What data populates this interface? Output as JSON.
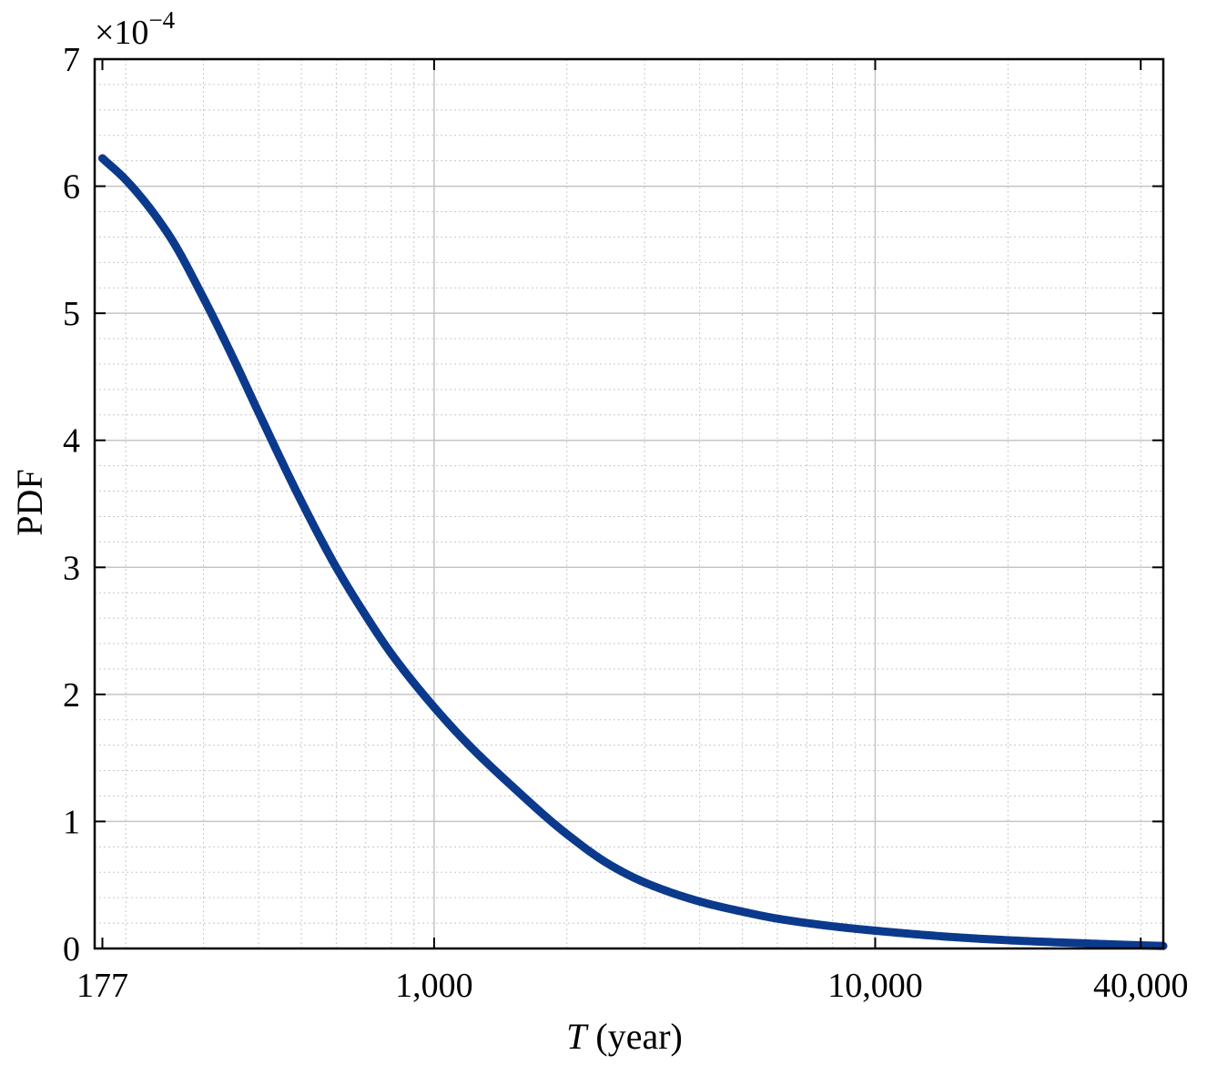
{
  "chart_data": {
    "type": "line",
    "xlabel": {
      "var": "T",
      "unit": " (year)"
    },
    "ylabel": "PDF",
    "xscale": "log",
    "xlim": [
      170,
      45000
    ],
    "ylim": [
      0,
      7
    ],
    "y_multiplier": {
      "base": "×10",
      "exp": "−4"
    },
    "x_ticks": [
      {
        "value": 177,
        "label": "177"
      },
      {
        "value": 1000,
        "label": "1,000"
      },
      {
        "value": 10000,
        "label": "10,000"
      },
      {
        "value": 40000,
        "label": "40,000"
      }
    ],
    "y_ticks": [
      {
        "value": 0,
        "label": "0"
      },
      {
        "value": 1,
        "label": "1"
      },
      {
        "value": 2,
        "label": "2"
      },
      {
        "value": 3,
        "label": "3"
      },
      {
        "value": 4,
        "label": "4"
      },
      {
        "value": 5,
        "label": "5"
      },
      {
        "value": 6,
        "label": "6"
      },
      {
        "value": 7,
        "label": "7"
      }
    ],
    "grid": true,
    "series": [
      {
        "color": "#0b3a8c",
        "x": [
          177,
          200,
          250,
          300,
          350,
          400,
          500,
          600,
          700,
          800,
          1000,
          1200,
          1500,
          2000,
          2500,
          3000,
          4000,
          5000,
          6000,
          8000,
          10000,
          15000,
          20000,
          30000,
          40000,
          45000
        ],
        "y": [
          6.22,
          6.05,
          5.62,
          5.12,
          4.65,
          4.22,
          3.52,
          3.0,
          2.62,
          2.32,
          1.9,
          1.6,
          1.28,
          0.9,
          0.66,
          0.52,
          0.37,
          0.29,
          0.235,
          0.175,
          0.14,
          0.09,
          0.065,
          0.04,
          0.025,
          0.02
        ]
      }
    ]
  }
}
